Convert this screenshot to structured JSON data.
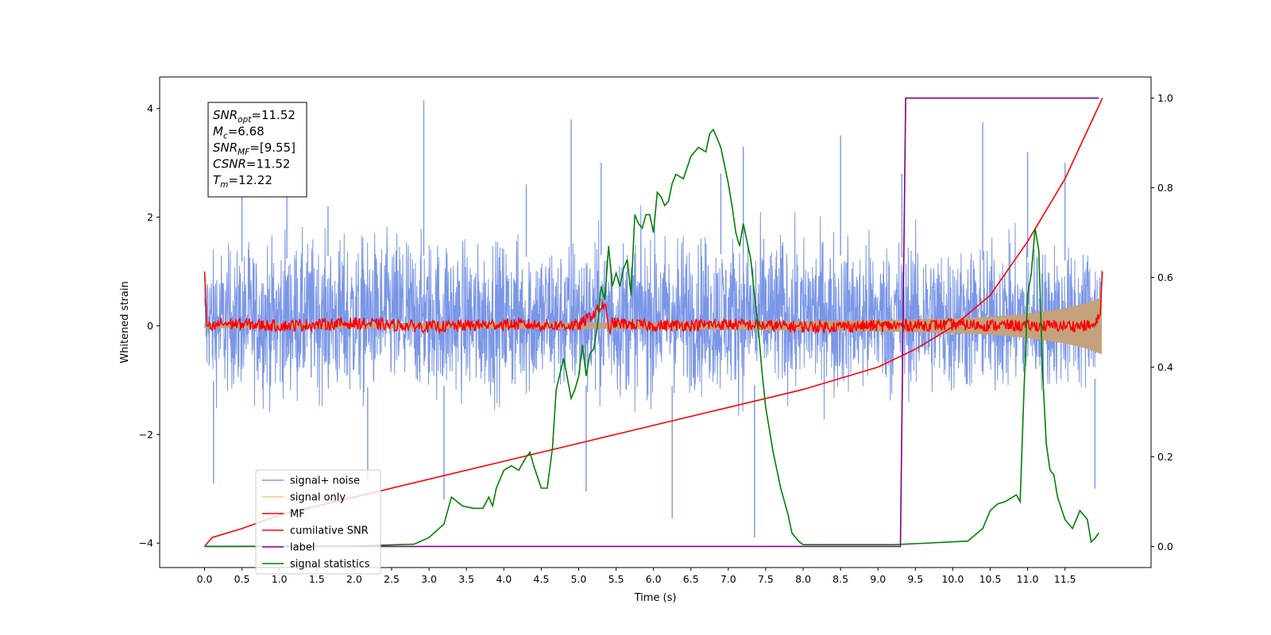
{
  "chart_data": {
    "type": "line",
    "title": "",
    "xlabel": "Time (s)",
    "ylabel": "Whitened strain",
    "y2label": "",
    "xlim": [
      -0.6,
      12.65
    ],
    "ylim": [
      -4.45,
      4.58
    ],
    "y2lim": [
      -0.047,
      1.047
    ],
    "x_ticks": [
      "0.0",
      "0.5",
      "1.0",
      "1.5",
      "2.0",
      "2.5",
      "3.0",
      "3.5",
      "4.0",
      "4.5",
      "5.0",
      "5.5",
      "6.0",
      "6.5",
      "7.0",
      "7.5",
      "8.0",
      "8.5",
      "9.0",
      "9.5",
      "10.0",
      "10.5",
      "11.0",
      "11.5"
    ],
    "y_ticks": [
      "4",
      "2",
      "0",
      "−2",
      "−4"
    ],
    "y_tick_values": [
      4,
      2,
      0,
      -2,
      -4
    ],
    "y2_ticks": [
      "1.0",
      "0.8",
      "0.6",
      "0.4",
      "0.2",
      "0.0"
    ],
    "y2_tick_values": [
      1.0,
      0.8,
      0.6,
      0.4,
      0.2,
      0.0
    ],
    "grid": false,
    "legend_position": "lower-left",
    "legend": [
      {
        "name": "signal+ noise",
        "color": "#7a96e8"
      },
      {
        "name": "signal only",
        "color": "#f7c97a"
      },
      {
        "name": "MF",
        "color": "#ff0000"
      },
      {
        "name": "cumilative SNR",
        "color": "#ff0000"
      },
      {
        "name": "label",
        "color": "#800080"
      },
      {
        "name": "signal statistics",
        "color": "#008000"
      }
    ],
    "info_box": [
      {
        "base": "SNR",
        "sub": "opt",
        "rest": "=11.52"
      },
      {
        "base": "M",
        "sub": "c",
        "rest": "=6.68"
      },
      {
        "base": "SNR",
        "sub": "MF",
        "rest": "=[9.55]"
      },
      {
        "base": "CSNR",
        "sub": "",
        "rest": "=11.52"
      },
      {
        "base": "T",
        "sub": "m",
        "rest": "=12.22"
      }
    ],
    "noise_envelope": {
      "x": [
        0.0,
        2.0,
        4.0,
        6.0,
        8.0,
        9.0,
        10.0,
        10.5,
        11.0,
        11.5,
        11.99
      ],
      "low": [
        -1.7,
        -1.9,
        -1.8,
        -1.85,
        -1.8,
        -1.75,
        -1.8,
        -1.75,
        -1.8,
        -1.75,
        -1.6
      ],
      "high": [
        1.9,
        2.2,
        2.1,
        2.2,
        2.2,
        2.1,
        2.1,
        2.0,
        2.1,
        2.0,
        1.9
      ]
    },
    "noise_spikes": [
      {
        "x": 0.12,
        "y": -2.9
      },
      {
        "x": 0.5,
        "y": 2.7
      },
      {
        "x": 1.1,
        "y": 2.8
      },
      {
        "x": 1.65,
        "y": 2.2
      },
      {
        "x": 2.18,
        "y": -2.85
      },
      {
        "x": 2.93,
        "y": 4.15
      },
      {
        "x": 3.2,
        "y": -3.2
      },
      {
        "x": 4.3,
        "y": 2.6
      },
      {
        "x": 4.9,
        "y": 3.8
      },
      {
        "x": 5.1,
        "y": -3.05
      },
      {
        "x": 5.3,
        "y": 3.0
      },
      {
        "x": 6.25,
        "y": -3.55
      },
      {
        "x": 6.9,
        "y": 2.8
      },
      {
        "x": 7.2,
        "y": 3.3
      },
      {
        "x": 7.35,
        "y": -3.9
      },
      {
        "x": 8.5,
        "y": 3.5
      },
      {
        "x": 9.32,
        "y": 2.8
      },
      {
        "x": 10.4,
        "y": 3.75
      },
      {
        "x": 11.0,
        "y": 3.2
      },
      {
        "x": 11.5,
        "y": 3.0
      },
      {
        "x": 11.9,
        "y": -3.0
      }
    ],
    "signal_envelope": {
      "x": [
        0.0,
        4.0,
        6.0,
        7.0,
        8.0,
        9.0,
        10.0,
        10.5,
        11.0,
        11.5,
        11.8,
        11.99
      ],
      "amp": [
        0.04,
        0.05,
        0.06,
        0.07,
        0.08,
        0.1,
        0.13,
        0.16,
        0.22,
        0.32,
        0.42,
        0.52
      ]
    },
    "mf": {
      "x": [
        0.0,
        0.03,
        0.1,
        0.2,
        1.0,
        2.0,
        3.0,
        4.0,
        5.0,
        5.35,
        5.4,
        5.45,
        6.0,
        7.0,
        8.0,
        9.0,
        10.0,
        11.0,
        11.9,
        11.97,
        12.0
      ],
      "y": [
        1.0,
        0.0,
        -0.05,
        0.05,
        0.0,
        0.05,
        -0.02,
        0.03,
        0.0,
        0.4,
        -0.1,
        0.05,
        0.0,
        0.03,
        -0.02,
        0.0,
        0.02,
        0.0,
        0.0,
        0.2,
        1.0
      ],
      "noise_amplitude": 0.11
    },
    "cumulative_snr": {
      "x": [
        0.0,
        0.1,
        0.5,
        1.0,
        2.0,
        3.0,
        4.0,
        5.0,
        6.0,
        7.0,
        8.0,
        9.0,
        9.5,
        10.0,
        10.5,
        11.0,
        11.5,
        12.0
      ],
      "y": [
        0.0,
        0.02,
        0.04,
        0.07,
        0.11,
        0.15,
        0.19,
        0.23,
        0.27,
        0.31,
        0.35,
        0.4,
        0.44,
        0.49,
        0.56,
        0.68,
        0.82,
        1.0
      ]
    },
    "label_series": {
      "x": [
        0.0,
        9.3,
        9.37,
        11.95
      ],
      "y": [
        0.0,
        0.0,
        1.0,
        1.0
      ]
    },
    "signal_statistics": {
      "x": [
        0.0,
        2.0,
        2.8,
        3.0,
        3.2,
        3.3,
        3.45,
        3.6,
        3.72,
        3.8,
        3.85,
        3.9,
        4.0,
        4.1,
        4.2,
        4.3,
        4.35,
        4.4,
        4.5,
        4.58,
        4.65,
        4.7,
        4.8,
        4.9,
        4.95,
        5.0,
        5.05,
        5.1,
        5.15,
        5.2,
        5.25,
        5.3,
        5.35,
        5.4,
        5.45,
        5.5,
        5.55,
        5.6,
        5.65,
        5.7,
        5.75,
        5.8,
        5.85,
        5.9,
        5.95,
        6.0,
        6.05,
        6.1,
        6.15,
        6.2,
        6.25,
        6.3,
        6.4,
        6.5,
        6.6,
        6.7,
        6.75,
        6.8,
        6.9,
        7.0,
        7.05,
        7.1,
        7.15,
        7.2,
        7.3,
        7.35,
        7.4,
        7.45,
        7.5,
        7.6,
        7.7,
        7.8,
        7.85,
        7.9,
        7.95,
        8.0,
        8.1,
        8.2,
        8.3,
        8.4,
        8.5,
        8.7,
        8.9,
        9.2,
        9.6,
        10.2,
        10.4,
        10.5,
        10.6,
        10.7,
        10.8,
        10.85,
        10.9,
        10.95,
        11.0,
        11.05,
        11.1,
        11.15,
        11.2,
        11.25,
        11.3,
        11.35,
        11.4,
        11.5,
        11.6,
        11.7,
        11.75,
        11.8,
        11.85,
        11.9,
        11.95
      ],
      "y": [
        0.0,
        0.001,
        0.005,
        0.02,
        0.05,
        0.11,
        0.09,
        0.085,
        0.085,
        0.11,
        0.09,
        0.13,
        0.17,
        0.18,
        0.17,
        0.2,
        0.21,
        0.18,
        0.13,
        0.13,
        0.22,
        0.35,
        0.42,
        0.33,
        0.35,
        0.38,
        0.45,
        0.38,
        0.43,
        0.44,
        0.49,
        0.58,
        0.55,
        0.67,
        0.58,
        0.61,
        0.58,
        0.62,
        0.64,
        0.56,
        0.74,
        0.72,
        0.71,
        0.74,
        0.74,
        0.7,
        0.79,
        0.78,
        0.76,
        0.77,
        0.81,
        0.83,
        0.82,
        0.87,
        0.89,
        0.88,
        0.92,
        0.93,
        0.89,
        0.81,
        0.76,
        0.7,
        0.67,
        0.72,
        0.64,
        0.56,
        0.49,
        0.39,
        0.31,
        0.21,
        0.13,
        0.07,
        0.03,
        0.02,
        0.01,
        0.004,
        0.004,
        0.004,
        0.004,
        0.004,
        0.004,
        0.004,
        0.004,
        0.004,
        0.007,
        0.012,
        0.04,
        0.08,
        0.095,
        0.1,
        0.11,
        0.115,
        0.1,
        0.34,
        0.56,
        0.61,
        0.71,
        0.66,
        0.39,
        0.23,
        0.17,
        0.16,
        0.11,
        0.06,
        0.04,
        0.08,
        0.07,
        0.06,
        0.01,
        0.018,
        0.03
      ]
    }
  }
}
